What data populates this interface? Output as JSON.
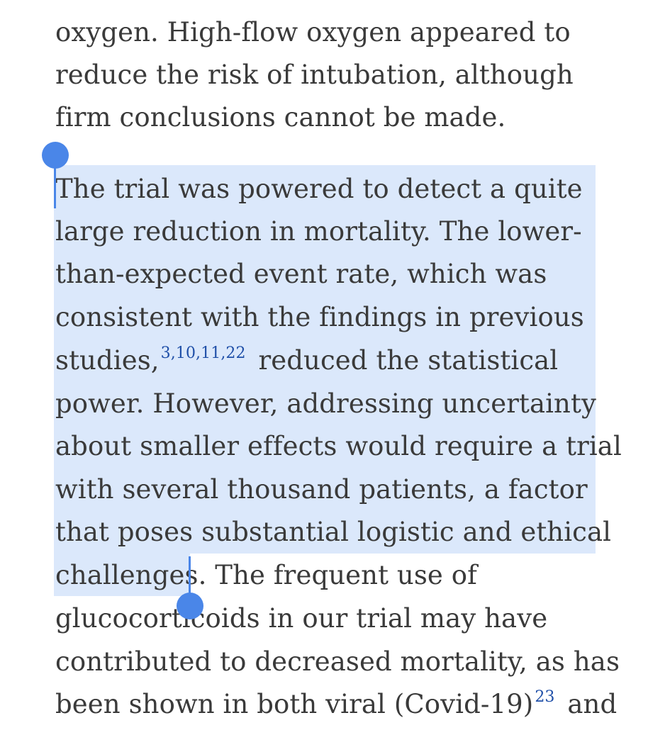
{
  "paragraph_top": {
    "lines": [
      "oxygen. High-flow oxygen appeared to",
      "reduce the risk of intubation, although",
      "firm conclusions cannot be made."
    ]
  },
  "paragraph_main": {
    "lines": [
      "The trial was powered to detect a quite",
      "large reduction in mortality. The lower-",
      "than-expected event rate, which was",
      "consistent with the findings in previous",
      "studies,",
      "3,10,11,22",
      " reduced the statistical",
      "power. However, addressing uncertainty",
      "about smaller effects would require a trial",
      "with several thousand patients, a factor",
      "that poses substantial logistic and ethical",
      "challenges",
      ". The frequent use of",
      "glucocorticoids in our trial may have",
      "contributed to decreased mortality, as has",
      "been shown in both viral (Covid-19)",
      "23",
      " and"
    ]
  },
  "colors": {
    "selection": "#dbe8fb",
    "handle": "#4a86e8",
    "reference_link": "#1f4fa8",
    "text": "#3a3a3a"
  }
}
